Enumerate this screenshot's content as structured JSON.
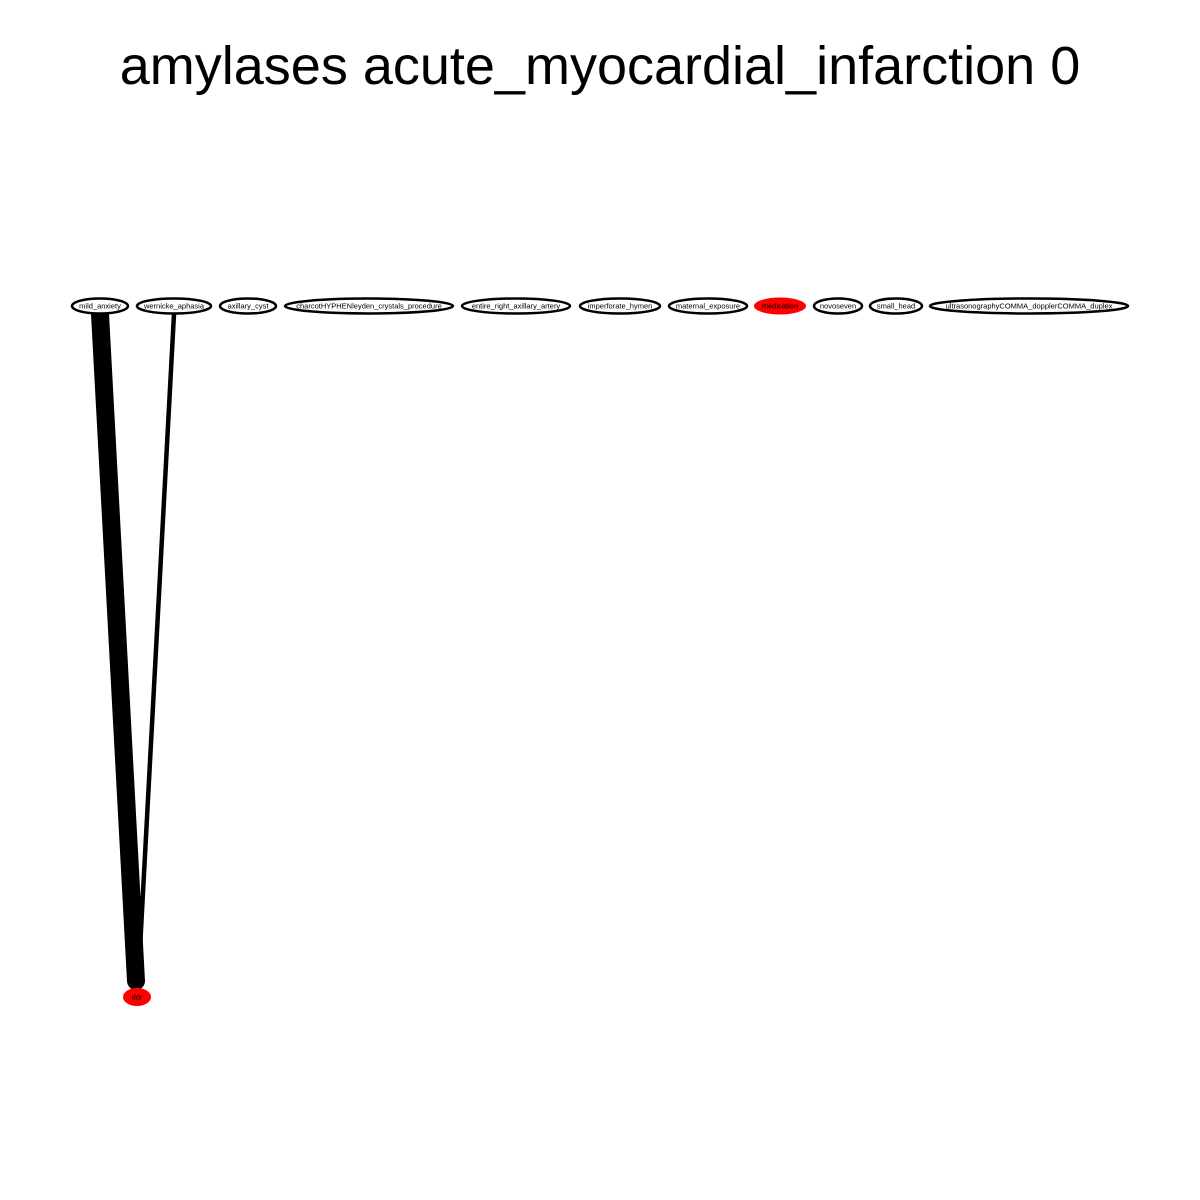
{
  "title": "amylases acute_myocardial_infarction 0",
  "colors": {
    "background": "#ffffff",
    "node_stroke": "#000000",
    "node_fill_default": "#ffffff",
    "node_fill_highlight": "#ff0000",
    "edge": "#000000"
  },
  "nodes": [
    {
      "id": "mild_anxiety",
      "label": "mild_anxiety",
      "highlight": false
    },
    {
      "id": "wernicke_aphasia",
      "label": "wernicke_aphasia",
      "highlight": false
    },
    {
      "id": "axillary_cyst",
      "label": "axillary_cyst",
      "highlight": false
    },
    {
      "id": "charcot_leyden",
      "label": "charcotHYPHENleyden_crystals_procedure",
      "highlight": false
    },
    {
      "id": "entire_right_axillary_artery",
      "label": "entire_right_axillary_artery",
      "highlight": false
    },
    {
      "id": "imperforate_hymen",
      "label": "imperforate_hymen",
      "highlight": false
    },
    {
      "id": "maternal_exposure",
      "label": "maternal_exposure",
      "highlight": false
    },
    {
      "id": "medication",
      "label": "medication",
      "highlight": true
    },
    {
      "id": "novoseven",
      "label": "novoseven",
      "highlight": false
    },
    {
      "id": "small_head",
      "label": "small_head",
      "highlight": false
    },
    {
      "id": "ultrasonography_doppler_duplex",
      "label": "ultrasonographyCOMMA_dopplerCOMMA_duplex",
      "highlight": false
    },
    {
      "id": "ddr",
      "label": "ddr",
      "highlight": true
    }
  ],
  "edges": [
    {
      "source": "mild_anxiety",
      "target": "ddr",
      "weight": 10
    },
    {
      "source": "wernicke_aphasia",
      "target": "ddr",
      "weight": 2
    }
  ]
}
